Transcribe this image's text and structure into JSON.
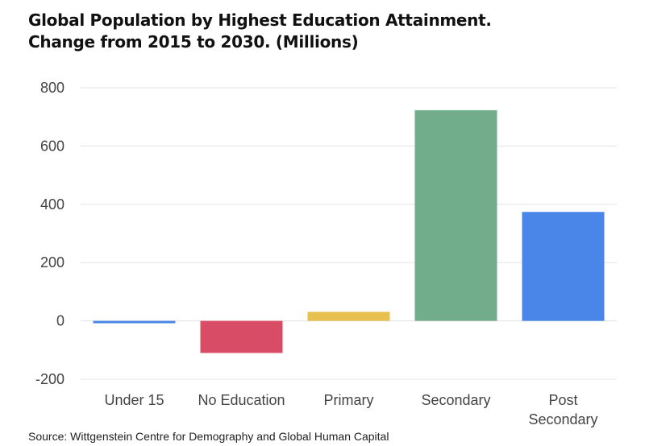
{
  "title_line1": "Global Population by Highest Education Attainment.",
  "title_line2": "Change from 2015 to 2030. (Millions)",
  "source": "Source: Wittgenstein Centre for Demography and Global Human Capital",
  "chart_data": {
    "type": "bar",
    "title": "Global Population by Highest Education Attainment. Change from 2015 to 2030. (Millions)",
    "xlabel": "",
    "ylabel": "",
    "categories": [
      [
        "Under 15"
      ],
      [
        "No Education"
      ],
      [
        "Primary"
      ],
      [
        "Secondary"
      ],
      [
        "Post",
        "Secondary"
      ]
    ],
    "values": [
      -8,
      -110,
      31,
      723,
      374
    ],
    "colors": [
      "#4a86e8",
      "#d84c66",
      "#e8c04f",
      "#71ac8b",
      "#4a86e8"
    ],
    "ylim": [
      -200,
      800
    ],
    "yticks": [
      -200,
      0,
      200,
      400,
      600,
      800
    ],
    "ytick_labels": [
      "-200",
      "0",
      "200",
      "400",
      "600",
      "800"
    ],
    "grid": true,
    "grid_color": "#e3e3e3"
  }
}
